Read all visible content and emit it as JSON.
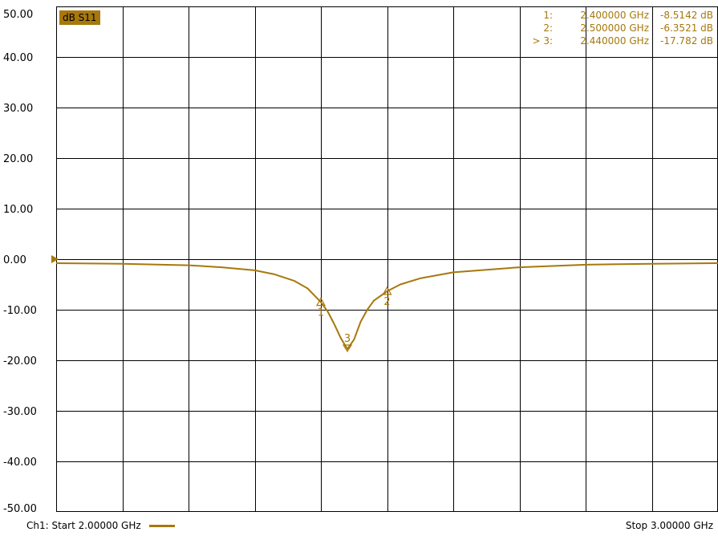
{
  "chart_data": {
    "type": "line",
    "title": "",
    "trace_label": "dB S11",
    "xlabel": "",
    "ylabel": "",
    "x_unit": "GHz",
    "xlim": [
      2.0,
      3.0
    ],
    "ylim": [
      -50,
      50
    ],
    "x_grid_divisions": 10,
    "y_ticks": [
      "50.00",
      "40.00",
      "30.00",
      "20.00",
      "10.00",
      "0.00",
      "-10.00",
      "-20.00",
      "-30.00",
      "-40.00",
      "-50.00"
    ],
    "y_tick_values": [
      50,
      40,
      30,
      20,
      10,
      0,
      -10,
      -20,
      -30,
      -40,
      -50
    ],
    "reference_level": 0,
    "grid": true,
    "series": [
      {
        "color": "#a7780c",
        "x": [
          2.0,
          2.1,
          2.2,
          2.25,
          2.3,
          2.33,
          2.36,
          2.38,
          2.4,
          2.41,
          2.42,
          2.43,
          2.44,
          2.45,
          2.46,
          2.47,
          2.48,
          2.5,
          2.52,
          2.55,
          2.6,
          2.7,
          2.8,
          2.9,
          3.0
        ],
        "y": [
          -0.8,
          -0.9,
          -1.2,
          -1.6,
          -2.2,
          -3.0,
          -4.3,
          -5.8,
          -8.5142,
          -10.3,
          -12.8,
          -15.6,
          -17.782,
          -15.9,
          -12.4,
          -10.0,
          -8.2,
          -6.3521,
          -5.0,
          -3.8,
          -2.6,
          -1.6,
          -1.1,
          -0.9,
          -0.8
        ]
      }
    ],
    "markers": [
      {
        "id": "1",
        "label": "1:",
        "freq": "2.400000 GHz",
        "value": "-8.5142 dB",
        "x": 2.4,
        "y": -8.5142
      },
      {
        "id": "2",
        "label": "2:",
        "freq": "2.500000 GHz",
        "value": "-6.3521 dB",
        "x": 2.5,
        "y": -6.3521
      },
      {
        "id": "3",
        "label": "> 3:",
        "freq": "2.440000 GHz",
        "value": "-17.782 dB",
        "x": 2.44,
        "y": -17.782
      }
    ]
  },
  "footer": {
    "start": "Ch1: Start  2.00000 GHz",
    "stop": "Stop  3.00000 GHz"
  },
  "colors": {
    "trace": "#a7780c",
    "grid": "#000000",
    "background": "#ffffff"
  }
}
